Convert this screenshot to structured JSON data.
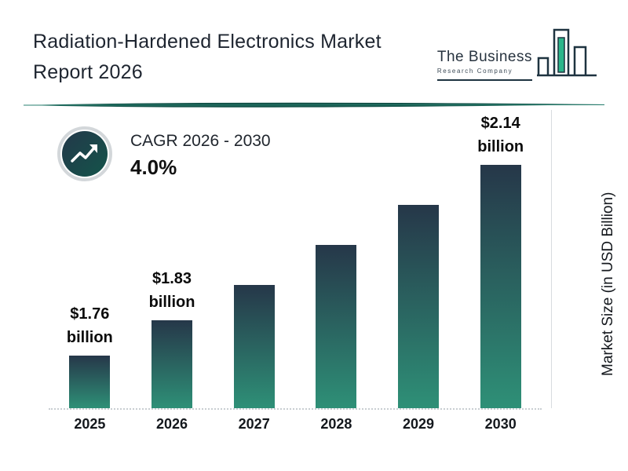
{
  "header": {
    "title_line1": "Radiation-Hardened Electronics Market",
    "title_line2": "Report 2026"
  },
  "logo": {
    "line1": "The Business",
    "line2": "Research Company"
  },
  "cagr": {
    "label": "CAGR 2026 - 2030",
    "value": "4.0%"
  },
  "chart_data": {
    "type": "bar",
    "title": "Radiation-Hardened Electronics Market Report 2026",
    "categories": [
      "2025",
      "2026",
      "2027",
      "2028",
      "2029",
      "2030"
    ],
    "values": [
      1.76,
      1.83,
      1.9,
      1.98,
      2.06,
      2.14
    ],
    "labels": [
      "$1.76 billion",
      "$1.83 billion",
      "",
      "",
      "",
      "$2.14 billion"
    ],
    "xlabel": "",
    "ylabel": "Market Size (in USD Billion)",
    "ylim": [
      1.65,
      2.2
    ],
    "grid": "off",
    "legend": "none",
    "value_axis_note": "values in USD billion; CAGR 2026-2030 = 4.0%"
  },
  "colors": {
    "bar_top": "#263749",
    "bar_bottom": "#2e9077",
    "teal": "#2a8070",
    "dark_teal": "#11544a",
    "logo_dark": "#1e3340",
    "logo_fill": "#2bb58a"
  }
}
